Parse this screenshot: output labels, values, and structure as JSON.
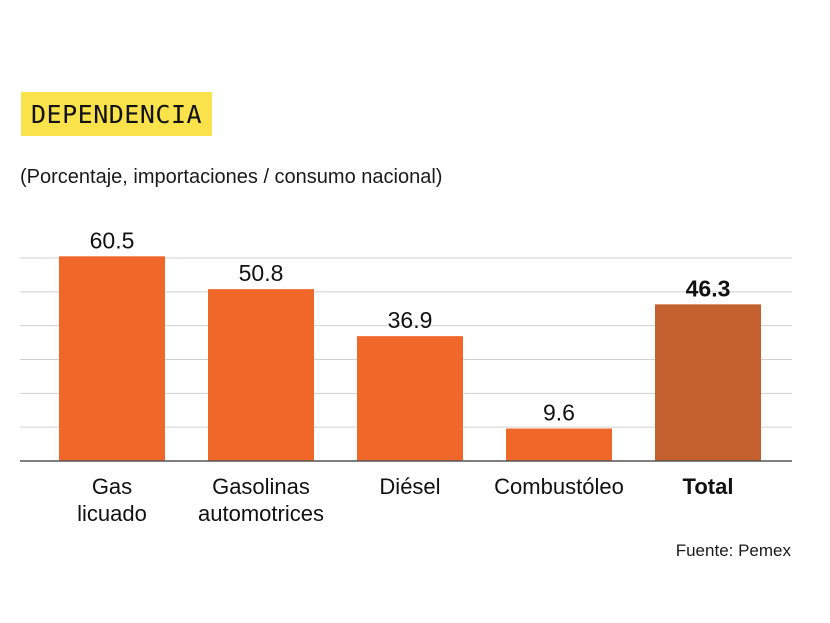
{
  "title": "DEPENDENCIA",
  "subtitle": "(Porcentaje, importaciones / consumo nacional)",
  "source": "Fuente: Pemex",
  "colors": {
    "bar": "#f0672a",
    "total_bar": "#c45f2e",
    "title_bg": "#f9e24a",
    "grid": "#d0d0d0",
    "axis": "#555555"
  },
  "chart_data": {
    "type": "bar",
    "title": "DEPENDENCIA",
    "subtitle": "(Porcentaje, importaciones / consumo nacional)",
    "categories": [
      [
        "Gas",
        "licuado"
      ],
      [
        "Gasolinas",
        "automotrices"
      ],
      [
        "Diésel"
      ],
      [
        "Combustóleo"
      ],
      [
        "Total"
      ]
    ],
    "values": [
      60.5,
      50.8,
      36.9,
      9.6,
      46.3
    ],
    "value_labels": [
      "60.5",
      "50.8",
      "36.9",
      "9.6",
      "46.3"
    ],
    "highlight_index": 4,
    "ylim": [
      0,
      60
    ],
    "grid": true,
    "xlabel": "",
    "ylabel": ""
  }
}
